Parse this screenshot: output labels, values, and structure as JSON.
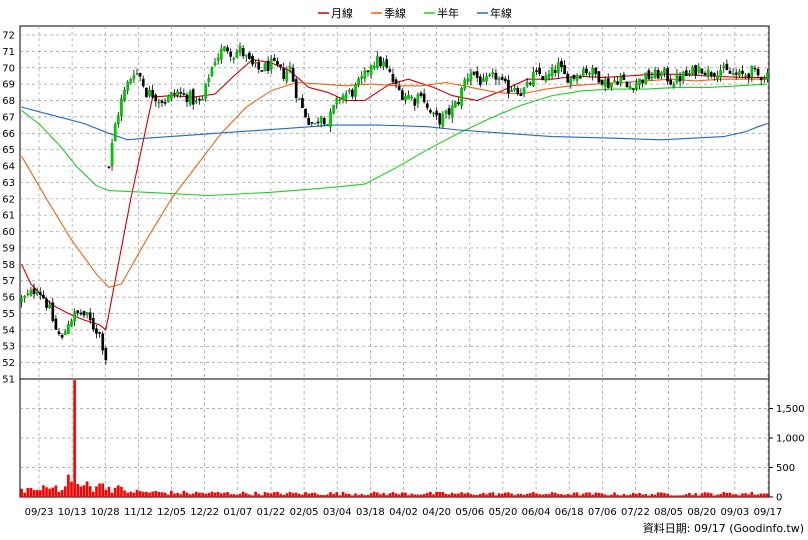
{
  "chart_data": {
    "type": "candlestick",
    "legend": {
      "placement": "top-center",
      "items": [
        {
          "name": "月線",
          "color": "#cc0000"
        },
        {
          "name": "季線",
          "color": "#e8661a"
        },
        {
          "name": "半年",
          "color": "#22cc22"
        },
        {
          "name": "年線",
          "color": "#2266cc"
        }
      ]
    },
    "price_axis": {
      "min": 51,
      "max": 72,
      "step": 1,
      "ticks": [
        "72",
        "71",
        "70",
        "69",
        "68",
        "67",
        "66",
        "65",
        "64",
        "63",
        "62",
        "61",
        "60",
        "59",
        "58",
        "57",
        "56",
        "55",
        "54",
        "53",
        "52",
        "51"
      ]
    },
    "volume_axis": {
      "min": 0,
      "max": 2000,
      "ticks": [
        {
          "value": 1500,
          "label": "1,500"
        },
        {
          "value": 1000,
          "label": "1,000"
        },
        {
          "value": 500,
          "label": "500"
        },
        {
          "value": 0,
          "label": "0"
        }
      ]
    },
    "x_ticks": [
      "09/23",
      "10/13",
      "10/28",
      "11/12",
      "12/05",
      "12/22",
      "01/07",
      "01/22",
      "02/05",
      "03/04",
      "03/18",
      "04/02",
      "04/20",
      "05/06",
      "05/20",
      "06/04",
      "06/18",
      "07/06",
      "07/22",
      "08/05",
      "08/20",
      "09/03",
      "09/17"
    ],
    "source_label": "資料日期: 09/17  (Goodinfo.tw)",
    "colors": {
      "up": "#00aa00",
      "down": "#000000",
      "up_fill": "#00cc00",
      "volume": "#ff0000",
      "grid": "#9a9a9a",
      "axis": "#000000"
    },
    "segments": [
      {
        "start": 0,
        "count": 28,
        "close_path": [
          [
            0,
            55.8
          ],
          [
            3,
            56.2
          ],
          [
            5,
            56.6
          ],
          [
            7,
            56.0
          ],
          [
            9,
            55.2
          ],
          [
            11,
            54.0
          ],
          [
            13,
            53.4
          ],
          [
            15,
            54.5
          ],
          [
            17,
            54.9
          ],
          [
            19,
            55.0
          ],
          [
            21,
            54.8
          ],
          [
            23,
            54.2
          ],
          [
            25,
            53.8
          ],
          [
            27,
            52.3
          ]
        ]
      },
      {
        "start": 28,
        "count": 212,
        "close_path": [
          [
            0,
            64.0
          ],
          [
            2,
            66.5
          ],
          [
            4,
            68.0
          ],
          [
            6,
            69.0
          ],
          [
            8,
            69.8
          ],
          [
            10,
            69.5
          ],
          [
            12,
            68.5
          ],
          [
            14,
            68.4
          ],
          [
            16,
            68.1
          ],
          [
            18,
            68.0
          ],
          [
            20,
            68.3
          ],
          [
            22,
            68.5
          ],
          [
            24,
            68.3
          ],
          [
            26,
            68.2
          ],
          [
            28,
            67.8
          ],
          [
            30,
            68.0
          ],
          [
            32,
            69.5
          ],
          [
            34,
            70.5
          ],
          [
            36,
            71.0
          ],
          [
            38,
            71.2
          ],
          [
            40,
            70.8
          ],
          [
            42,
            71.1
          ],
          [
            44,
            70.6
          ],
          [
            46,
            70.1
          ],
          [
            48,
            69.9
          ],
          [
            50,
            70.0
          ],
          [
            52,
            70.2
          ],
          [
            54,
            70.0
          ],
          [
            56,
            69.6
          ],
          [
            58,
            70.0
          ],
          [
            60,
            68.5
          ],
          [
            62,
            67.5
          ],
          [
            64,
            66.8
          ],
          [
            66,
            66.5
          ],
          [
            68,
            67.2
          ],
          [
            70,
            66.6
          ],
          [
            72,
            67.5
          ],
          [
            74,
            68.2
          ],
          [
            76,
            68.4
          ],
          [
            78,
            68.5
          ],
          [
            80,
            69.0
          ],
          [
            82,
            69.5
          ],
          [
            84,
            70.3
          ],
          [
            86,
            70.4
          ],
          [
            88,
            70.2
          ],
          [
            90,
            69.6
          ],
          [
            92,
            68.8
          ],
          [
            94,
            68.4
          ],
          [
            96,
            68.3
          ],
          [
            98,
            68.0
          ],
          [
            100,
            68.6
          ],
          [
            102,
            67.5
          ],
          [
            104,
            67.0
          ],
          [
            106,
            66.8
          ],
          [
            108,
            67.1
          ],
          [
            110,
            67.5
          ],
          [
            112,
            68.0
          ],
          [
            114,
            69.2
          ],
          [
            116,
            69.8
          ],
          [
            118,
            69.4
          ],
          [
            120,
            69.0
          ],
          [
            122,
            69.3
          ],
          [
            124,
            69.5
          ],
          [
            126,
            69.0
          ],
          [
            128,
            68.7
          ],
          [
            130,
            68.9
          ],
          [
            132,
            68.5
          ],
          [
            134,
            68.8
          ],
          [
            136,
            69.5
          ],
          [
            138,
            69.6
          ],
          [
            140,
            69.3
          ],
          [
            142,
            69.7
          ],
          [
            144,
            70.1
          ],
          [
            146,
            69.5
          ],
          [
            148,
            69.4
          ],
          [
            150,
            69.6
          ],
          [
            152,
            69.9
          ],
          [
            154,
            69.8
          ],
          [
            156,
            69.6
          ],
          [
            158,
            69.3
          ],
          [
            160,
            69.0
          ],
          [
            162,
            69.2
          ],
          [
            164,
            69.4
          ],
          [
            166,
            68.8
          ],
          [
            168,
            69.0
          ],
          [
            170,
            69.2
          ],
          [
            172,
            69.4
          ],
          [
            174,
            69.5
          ],
          [
            176,
            69.6
          ],
          [
            178,
            69.6
          ],
          [
            180,
            69.2
          ],
          [
            182,
            69.3
          ],
          [
            184,
            69.5
          ],
          [
            186,
            69.6
          ],
          [
            188,
            69.9
          ],
          [
            190,
            70.0
          ],
          [
            192,
            69.7
          ],
          [
            194,
            69.8
          ],
          [
            196,
            69.9
          ],
          [
            198,
            69.7
          ],
          [
            200,
            69.6
          ],
          [
            202,
            69.5
          ],
          [
            204,
            69.6
          ],
          [
            206,
            69.8
          ],
          [
            208,
            69.5
          ],
          [
            211,
            69.6
          ]
        ]
      }
    ],
    "volume_profile": [
      [
        0,
        140
      ],
      [
        5,
        120
      ],
      [
        10,
        160
      ],
      [
        14,
        180
      ],
      [
        15,
        380
      ],
      [
        16,
        260
      ],
      [
        17,
        1980
      ],
      [
        18,
        220
      ],
      [
        20,
        200
      ],
      [
        24,
        180
      ],
      [
        26,
        230
      ],
      [
        27,
        120
      ],
      [
        28,
        170
      ],
      [
        35,
        90
      ],
      [
        50,
        70
      ],
      [
        80,
        60
      ],
      [
        120,
        60
      ],
      [
        160,
        55
      ],
      [
        200,
        50
      ],
      [
        239,
        60
      ]
    ],
    "moving_averages": [
      {
        "name": "月線",
        "color": "#cc0000",
        "points": [
          [
            0,
            58.0
          ],
          [
            3,
            56.8
          ],
          [
            6,
            56.2
          ],
          [
            10,
            55.5
          ],
          [
            15,
            55.0
          ],
          [
            20,
            54.6
          ],
          [
            25,
            54.3
          ],
          [
            27,
            54.0
          ],
          [
            35,
            62.0
          ],
          [
            42,
            68.2
          ],
          [
            48,
            68.3
          ],
          [
            55,
            68.2
          ],
          [
            62,
            68.4
          ],
          [
            68,
            69.5
          ],
          [
            74,
            70.5
          ],
          [
            80,
            70.3
          ],
          [
            86,
            69.8
          ],
          [
            92,
            68.8
          ],
          [
            98,
            68.5
          ],
          [
            104,
            68.0
          ],
          [
            110,
            68.0
          ],
          [
            118,
            69.0
          ],
          [
            124,
            69.3
          ],
          [
            132,
            68.8
          ],
          [
            138,
            68.3
          ],
          [
            146,
            68.0
          ],
          [
            154,
            68.6
          ],
          [
            162,
            69.3
          ],
          [
            170,
            69.3
          ],
          [
            178,
            69.5
          ],
          [
            186,
            69.4
          ],
          [
            194,
            69.5
          ],
          [
            202,
            69.6
          ],
          [
            210,
            69.6
          ],
          [
            220,
            69.5
          ],
          [
            232,
            69.4
          ],
          [
            239,
            69.4
          ]
        ]
      },
      {
        "name": "季線",
        "color": "#e8661a",
        "points": [
          [
            0,
            64.6
          ],
          [
            8,
            62.0
          ],
          [
            16,
            59.5
          ],
          [
            24,
            57.4
          ],
          [
            28,
            56.6
          ],
          [
            32,
            56.8
          ],
          [
            40,
            59.5
          ],
          [
            48,
            62.0
          ],
          [
            56,
            64.0
          ],
          [
            64,
            66.0
          ],
          [
            72,
            67.6
          ],
          [
            80,
            68.6
          ],
          [
            88,
            69.1
          ],
          [
            96,
            69.0
          ],
          [
            104,
            68.9
          ],
          [
            112,
            69.0
          ],
          [
            120,
            68.9
          ],
          [
            128,
            68.9
          ],
          [
            136,
            69.1
          ],
          [
            144,
            68.8
          ],
          [
            152,
            68.5
          ],
          [
            160,
            68.4
          ],
          [
            168,
            68.7
          ],
          [
            176,
            68.9
          ],
          [
            184,
            69.0
          ],
          [
            192,
            69.1
          ],
          [
            200,
            69.2
          ],
          [
            208,
            69.3
          ],
          [
            216,
            69.2
          ],
          [
            224,
            69.3
          ],
          [
            232,
            69.3
          ],
          [
            239,
            69.3
          ]
        ]
      },
      {
        "name": "半年",
        "color": "#22cc22",
        "points": [
          [
            0,
            67.4
          ],
          [
            6,
            66.5
          ],
          [
            12,
            65.3
          ],
          [
            18,
            63.9
          ],
          [
            24,
            62.8
          ],
          [
            28,
            62.5
          ],
          [
            40,
            62.4
          ],
          [
            60,
            62.2
          ],
          [
            80,
            62.4
          ],
          [
            100,
            62.7
          ],
          [
            110,
            62.9
          ],
          [
            120,
            63.9
          ],
          [
            130,
            65.0
          ],
          [
            140,
            66.0
          ],
          [
            150,
            66.9
          ],
          [
            160,
            67.7
          ],
          [
            170,
            68.3
          ],
          [
            180,
            68.6
          ],
          [
            190,
            68.7
          ],
          [
            200,
            68.7
          ],
          [
            210,
            68.8
          ],
          [
            220,
            68.8
          ],
          [
            230,
            68.9
          ],
          [
            239,
            69.0
          ]
        ]
      },
      {
        "name": "年線",
        "color": "#2266cc",
        "points": [
          [
            0,
            67.6
          ],
          [
            10,
            67.1
          ],
          [
            20,
            66.6
          ],
          [
            28,
            66.0
          ],
          [
            34,
            65.6
          ],
          [
            40,
            65.7
          ],
          [
            55,
            65.9
          ],
          [
            70,
            66.1
          ],
          [
            85,
            66.3
          ],
          [
            100,
            66.5
          ],
          [
            115,
            66.5
          ],
          [
            130,
            66.4
          ],
          [
            140,
            66.2
          ],
          [
            155,
            66.0
          ],
          [
            170,
            65.8
          ],
          [
            190,
            65.7
          ],
          [
            205,
            65.6
          ],
          [
            215,
            65.7
          ],
          [
            225,
            65.8
          ],
          [
            232,
            66.1
          ],
          [
            236,
            66.4
          ],
          [
            239,
            66.6
          ]
        ]
      }
    ]
  }
}
